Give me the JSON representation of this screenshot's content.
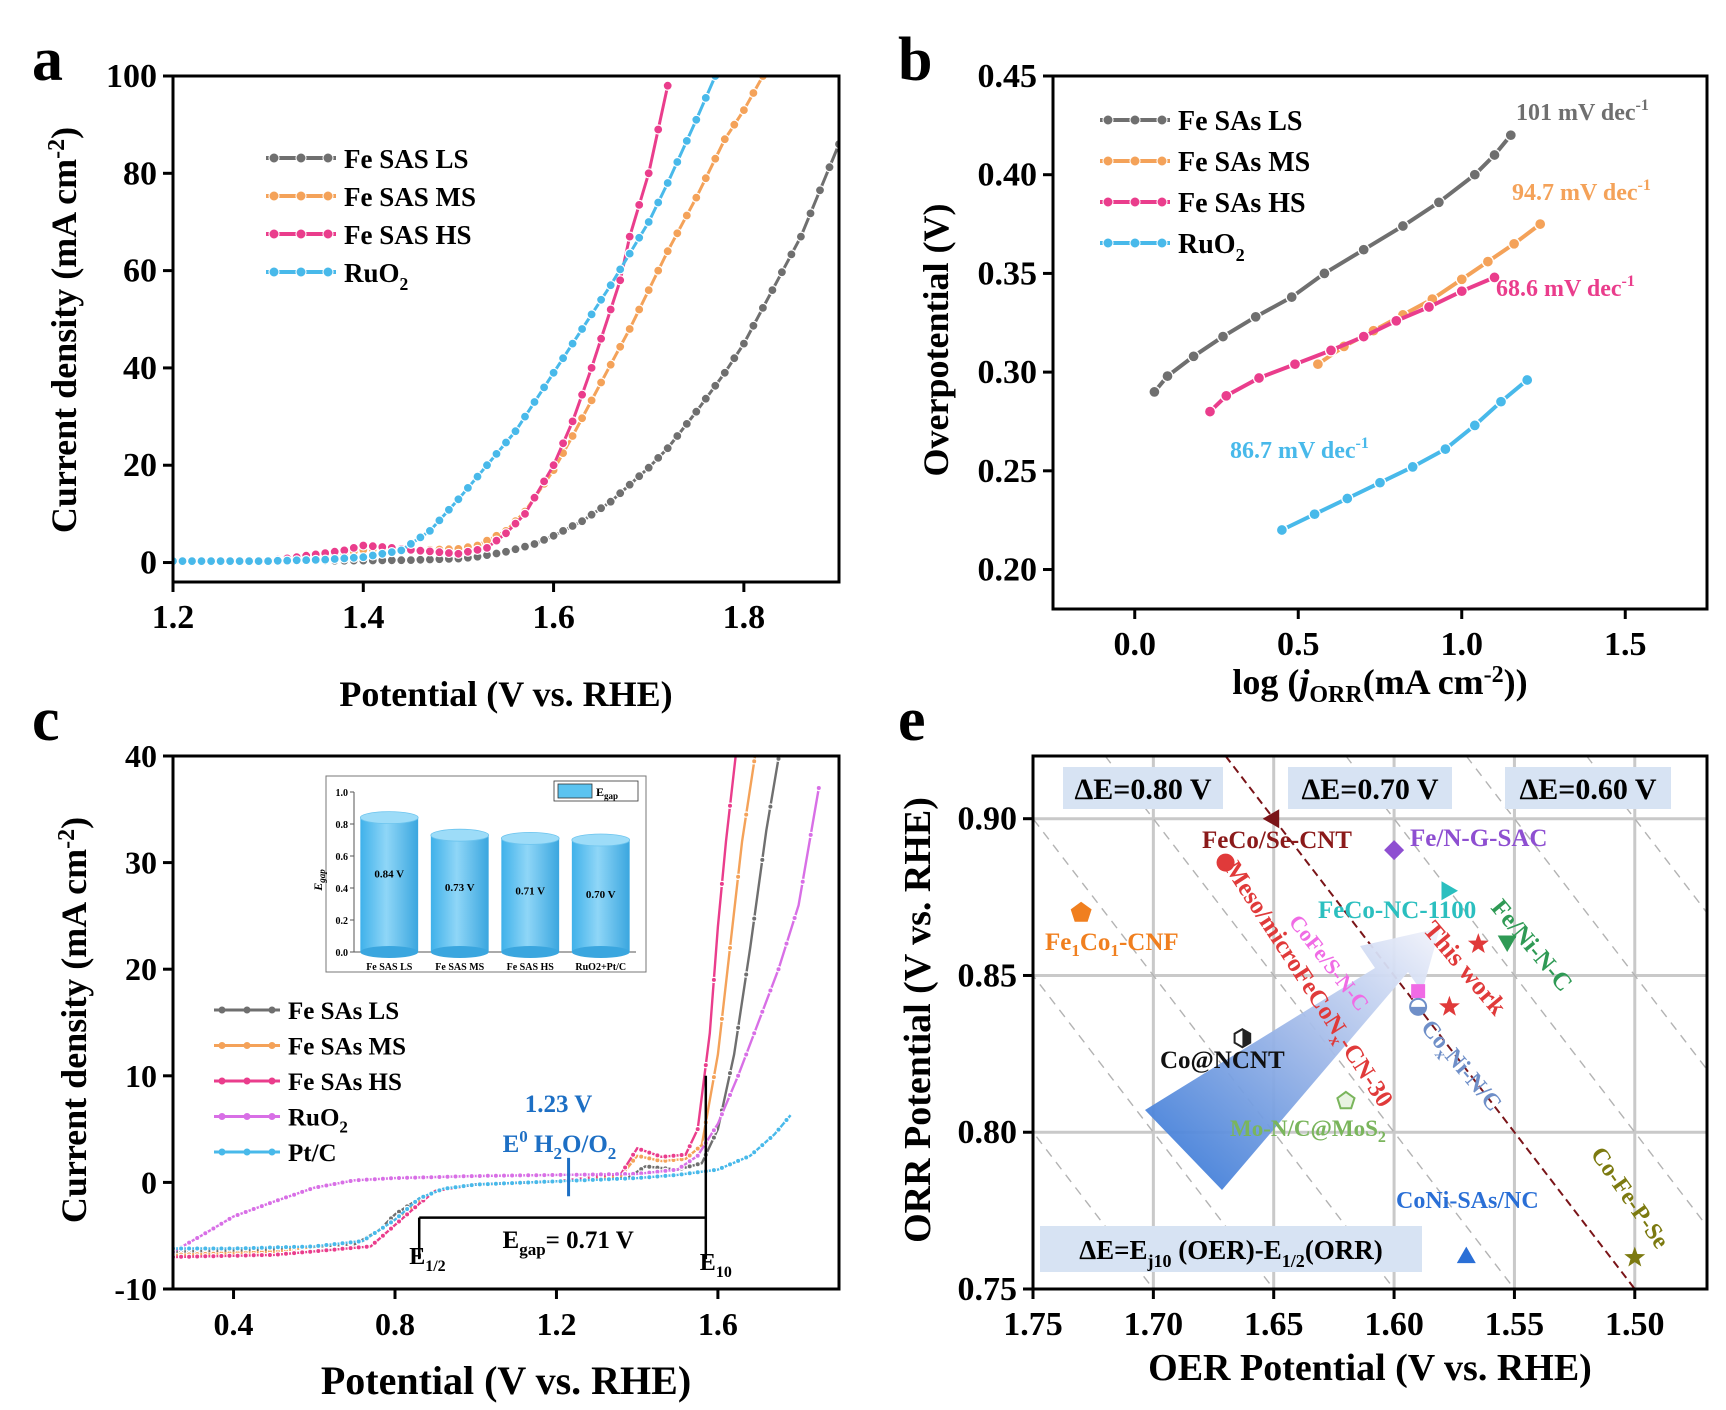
{
  "figure": {
    "panel_labels": {
      "a": "a",
      "b": "b",
      "c": "c",
      "e": "e"
    }
  },
  "chart_data": [
    {
      "id": "a",
      "type": "line",
      "xlabel": "Potential (V vs. RHE)",
      "ylabel_main": "Current density (mA cm",
      "ylabel_sup": "-2",
      "ylabel_end": ")",
      "xlim": [
        1.2,
        1.9
      ],
      "ylim": [
        -4,
        100
      ],
      "xticks": [
        1.2,
        1.4,
        1.6,
        1.8
      ],
      "xtick_labels": [
        "1.2",
        "1.4",
        "1.6",
        "1.8"
      ],
      "yticks": [
        0,
        20,
        40,
        60,
        80,
        100
      ],
      "ytick_labels": [
        "0",
        "20",
        "40",
        "60",
        "80",
        "100"
      ],
      "legend_position": "upper-left",
      "series": [
        {
          "legend": "Fe SAS LS",
          "color": "#6f6f6f",
          "x": [
            1.2,
            1.3,
            1.4,
            1.45,
            1.5,
            1.52,
            1.55,
            1.58,
            1.6,
            1.63,
            1.66,
            1.7,
            1.72,
            1.75,
            1.78,
            1.8,
            1.83,
            1.86,
            1.9
          ],
          "y": [
            0.3,
            0.3,
            0.4,
            0.5,
            0.8,
            1.2,
            2.2,
            3.8,
            5.5,
            8.5,
            12.5,
            19.5,
            23.5,
            31,
            39,
            45,
            56,
            67,
            86
          ]
        },
        {
          "legend": "Fe SAS MS",
          "color": "#f4a259",
          "x": [
            1.2,
            1.3,
            1.38,
            1.4,
            1.42,
            1.45,
            1.5,
            1.52,
            1.55,
            1.57,
            1.6,
            1.62,
            1.65,
            1.68,
            1.7,
            1.72,
            1.75,
            1.78,
            1.8,
            1.82
          ],
          "y": [
            0.3,
            0.3,
            1.8,
            2.6,
            2.8,
            2.5,
            2.8,
            3.5,
            6.5,
            10.5,
            19,
            26,
            37,
            48,
            56,
            64,
            75,
            87,
            93,
            100
          ]
        },
        {
          "legend": "Fe SAS HS",
          "color": "#ea3d8c",
          "x": [
            1.2,
            1.3,
            1.38,
            1.4,
            1.42,
            1.45,
            1.5,
            1.53,
            1.55,
            1.57,
            1.6,
            1.62,
            1.64,
            1.65,
            1.66,
            1.67,
            1.68,
            1.7,
            1.72
          ],
          "y": [
            0.3,
            0.3,
            2.5,
            3.5,
            3.2,
            2.6,
            1.8,
            3,
            6,
            10,
            20,
            29,
            40,
            46,
            52,
            58,
            67,
            80,
            98
          ]
        },
        {
          "legend": "RuO2",
          "color": "#48b9ea",
          "x": [
            1.2,
            1.3,
            1.36,
            1.4,
            1.44,
            1.47,
            1.5,
            1.53,
            1.56,
            1.6,
            1.63,
            1.66,
            1.7,
            1.72,
            1.75,
            1.77
          ],
          "y": [
            0.3,
            0.3,
            0.6,
            1.1,
            2.5,
            6.5,
            13,
            20,
            27,
            39,
            48,
            57,
            70,
            78,
            91,
            100
          ]
        }
      ]
    },
    {
      "id": "b",
      "type": "line",
      "xlabel_pre": "log (",
      "xlabel_j": "j",
      "xlabel_sub": "ORR",
      "xlabel_mid": "(mA cm",
      "xlabel_sup": "-2",
      "xlabel_end": "))",
      "ylabel": "Overpotential (V)",
      "xlim": [
        -0.25,
        1.75
      ],
      "ylim": [
        0.18,
        0.45
      ],
      "xticks": [
        0.0,
        0.5,
        1.0,
        1.5
      ],
      "xtick_labels": [
        "0.0",
        "0.5",
        "1.0",
        "1.5"
      ],
      "yticks": [
        0.2,
        0.25,
        0.3,
        0.35,
        0.4,
        0.45
      ],
      "ytick_labels": [
        "0.20",
        "0.25",
        "0.30",
        "0.35",
        "0.40",
        "0.45"
      ],
      "legend_position": "upper-left",
      "series": [
        {
          "legend": "Fe SAs LS",
          "color": "#6f6f6f",
          "annotation": "101 mV dec",
          "annotation_sup": "-1",
          "x": [
            0.06,
            0.1,
            0.18,
            0.27,
            0.37,
            0.48,
            0.58,
            0.7,
            0.82,
            0.93,
            1.04,
            1.1,
            1.15
          ],
          "y": [
            0.29,
            0.298,
            0.308,
            0.318,
            0.328,
            0.338,
            0.35,
            0.362,
            0.374,
            0.386,
            0.4,
            0.41,
            0.42
          ]
        },
        {
          "legend": "Fe SAs MS",
          "color": "#f4a259",
          "annotation": "94.7 mV dec",
          "annotation_sup": "-1",
          "x": [
            0.56,
            0.64,
            0.73,
            0.82,
            0.91,
            1.0,
            1.08,
            1.16,
            1.24
          ],
          "y": [
            0.304,
            0.313,
            0.321,
            0.329,
            0.337,
            0.347,
            0.356,
            0.365,
            0.375
          ]
        },
        {
          "legend": "Fe SAs HS",
          "color": "#ea3d8c",
          "annotation": "68.6 mV dec",
          "annotation_sup": "-1",
          "x": [
            0.23,
            0.28,
            0.38,
            0.49,
            0.6,
            0.7,
            0.8,
            0.9,
            1.0,
            1.1
          ],
          "y": [
            0.28,
            0.288,
            0.297,
            0.304,
            0.311,
            0.318,
            0.326,
            0.333,
            0.341,
            0.348
          ]
        },
        {
          "legend": "RuO2",
          "color": "#48b9ea",
          "annotation": "86.7 mV dec",
          "annotation_sup": "-1",
          "x": [
            0.45,
            0.55,
            0.65,
            0.75,
            0.85,
            0.95,
            1.04,
            1.12,
            1.2
          ],
          "y": [
            0.22,
            0.228,
            0.236,
            0.244,
            0.252,
            0.261,
            0.273,
            0.285,
            0.296
          ]
        }
      ]
    },
    {
      "id": "c",
      "type": "line",
      "xlabel": "Potential (V vs. RHE)",
      "ylabel_main": "Current density (mA cm",
      "ylabel_sup": "-2",
      "ylabel_end": ")",
      "xlim": [
        0.25,
        1.9
      ],
      "ylim": [
        -10,
        40
      ],
      "xticks": [
        0.4,
        0.8,
        1.2,
        1.6
      ],
      "xtick_labels": [
        "0.4",
        "0.8",
        "1.2",
        "1.6"
      ],
      "yticks": [
        -10,
        0,
        10,
        20,
        30,
        40
      ],
      "ytick_labels": [
        "-10",
        "0",
        "10",
        "20",
        "30",
        "40"
      ],
      "legend_position": "lower-left",
      "annotations": {
        "e0_value": "1.23 V",
        "e0_label_pre": "E",
        "e0_label_sup": "0",
        "e0_label_mid": " H",
        "e0_label_sub": "2",
        "e0_label_mid2": "O/O",
        "e0_label_sub2": "2",
        "egap_pre": "E",
        "egap_sub": "gap",
        "egap_post": "= 0.71 V",
        "e_half_pre": "E",
        "e_half_sub": "1/2",
        "e10_pre": "E",
        "e10_sub": "10",
        "e_half_x": 0.86,
        "e10_x": 1.57,
        "e0_x": 1.23
      },
      "series": [
        {
          "legend": "Fe SAs LS",
          "color": "#6f6f6f",
          "x": [
            0.25,
            0.5,
            0.7,
            0.76,
            0.8,
            0.86,
            0.92,
            1.0,
            1.2,
            1.38,
            1.42,
            1.5,
            1.56,
            1.6,
            1.64,
            1.68,
            1.72,
            1.76
          ],
          "y": [
            -6.5,
            -6.3,
            -5.8,
            -4.5,
            -3.0,
            -1.5,
            -0.6,
            -0.2,
            0.1,
            0.5,
            1.5,
            1.2,
            1.8,
            5,
            12,
            22,
            33,
            42
          ]
        },
        {
          "legend": "Fe SAs MS",
          "color": "#f4a259",
          "x": [
            0.25,
            0.5,
            0.72,
            0.8,
            0.86,
            0.9,
            1.0,
            1.2,
            1.36,
            1.4,
            1.46,
            1.52,
            1.56,
            1.6,
            1.63,
            1.66,
            1.7
          ],
          "y": [
            -6.8,
            -6.5,
            -5.5,
            -3.5,
            -1.8,
            -0.8,
            -0.2,
            0.1,
            0.6,
            2.5,
            2.0,
            2.2,
            3.5,
            12,
            22,
            32,
            42
          ]
        },
        {
          "legend": "Fe SAs HS",
          "color": "#ea3d8c",
          "x": [
            0.25,
            0.5,
            0.74,
            0.8,
            0.86,
            0.9,
            1.0,
            1.2,
            1.36,
            1.4,
            1.46,
            1.52,
            1.55,
            1.58,
            1.6,
            1.62,
            1.65
          ],
          "y": [
            -7,
            -6.8,
            -6.0,
            -4.0,
            -2.0,
            -0.8,
            -0.2,
            0.1,
            0.8,
            3.2,
            2.4,
            2.6,
            5,
            14,
            24,
            32,
            42
          ]
        },
        {
          "legend": "RuO2",
          "color": "#d86fe6",
          "x": [
            0.25,
            0.32,
            0.4,
            0.5,
            0.6,
            0.7,
            0.8,
            1.0,
            1.2,
            1.4,
            1.5,
            1.55,
            1.6,
            1.65,
            1.7,
            1.75,
            1.8,
            1.85
          ],
          "y": [
            -6.5,
            -5.0,
            -3.2,
            -1.8,
            -0.5,
            0.2,
            0.4,
            0.6,
            0.7,
            0.8,
            1.2,
            2.5,
            5.5,
            10,
            15,
            20,
            26,
            37
          ]
        },
        {
          "legend": "Pt/C",
          "color": "#48b9ea",
          "x": [
            0.25,
            0.4,
            0.6,
            0.72,
            0.8,
            0.86,
            0.92,
            1.0,
            1.2,
            1.4,
            1.5,
            1.6,
            1.68,
            1.74,
            1.78
          ],
          "y": [
            -6.2,
            -6.2,
            -6.0,
            -5.5,
            -3.5,
            -1.5,
            -0.6,
            -0.2,
            0.1,
            0.4,
            0.7,
            1.2,
            2.5,
            4.5,
            6.3
          ]
        }
      ],
      "inset": {
        "type": "bar",
        "legend": "E",
        "legend_sub": "gap",
        "ylabel": "E",
        "ylabel_sub": "gap",
        "ylim": [
          0,
          1.0
        ],
        "yticks": [
          0,
          0.2,
          0.4,
          0.6,
          0.8,
          1.0
        ],
        "ytick_labels": [
          "0.0",
          "0.2",
          "0.4",
          "0.6",
          "0.8",
          "1.0"
        ],
        "categories": [
          "Fe SAS LS",
          "Fe SAS MS",
          "Fe SAS HS",
          "RuO2+Pt/C"
        ],
        "values": [
          0.84,
          0.73,
          0.71,
          0.7
        ],
        "value_labels": [
          "0.84 V",
          "0.73 V",
          "0.71 V",
          "0.70 V"
        ],
        "color": "#5bc3f0"
      }
    },
    {
      "id": "e",
      "type": "scatter",
      "xlabel": "OER Potential (V vs. RHE)",
      "ylabel": "ORR Potential (V vs. RHE)",
      "xlim": [
        1.75,
        1.47
      ],
      "ylim": [
        0.75,
        0.92
      ],
      "x_reversed": true,
      "xticks": [
        1.75,
        1.7,
        1.65,
        1.6,
        1.55,
        1.5
      ],
      "xtick_labels": [
        "1.75",
        "1.70",
        "1.65",
        "1.60",
        "1.55",
        "1.50"
      ],
      "yticks": [
        0.75,
        0.8,
        0.85,
        0.9
      ],
      "ytick_labels": [
        "0.75",
        "0.80",
        "0.85",
        "0.90"
      ],
      "grid": true,
      "boxes": {
        "de080": "ΔE=0.80 V",
        "de070": "ΔE=0.70 V",
        "de060": "ΔE=0.60 V",
        "formula_pre": "ΔE=E",
        "formula_sub1": "j10",
        "formula_mid": " (OER)-E",
        "formula_sub2": "1/2",
        "formula_end": "(ORR)"
      },
      "points": [
        {
          "label": "FeCo/Se-CNT",
          "x": 1.65,
          "y": 0.9,
          "marker": "triangle-left",
          "color": "#7a1418"
        },
        {
          "label": "Fe/N-G-SAC",
          "x": 1.6,
          "y": 0.89,
          "marker": "diamond",
          "color": "#8e4fd1"
        },
        {
          "label": "Meso/microFeCoNx-CN-30",
          "x": 1.67,
          "y": 0.886,
          "marker": "circle",
          "color": "#e03a3a"
        },
        {
          "label": "FeCo-NC-1100",
          "x": 1.578,
          "y": 0.877,
          "marker": "triangle-right",
          "color": "#2bbfbf"
        },
        {
          "label": "Fe1Co1-CNF",
          "x": 1.73,
          "y": 0.87,
          "marker": "pentagon",
          "color": "#f07f1f"
        },
        {
          "label": "Fe/Ni-N-C",
          "x": 1.553,
          "y": 0.861,
          "marker": "triangle-down",
          "color": "#2f9a55"
        },
        {
          "label": "This work",
          "x": 1.565,
          "y": 0.86,
          "marker": "star",
          "color": "#e03a3a"
        },
        {
          "label": "This work",
          "x": 1.577,
          "y": 0.84,
          "marker": "star",
          "color": "#e03a3a"
        },
        {
          "label": "CoFe/S-N-C",
          "x": 1.59,
          "y": 0.845,
          "marker": "square",
          "color": "#f06be5"
        },
        {
          "label": "CoxNi-N/C",
          "x": 1.59,
          "y": 0.84,
          "marker": "half-circle",
          "color": "#6f8fc8"
        },
        {
          "label": "Co@NCNT",
          "x": 1.663,
          "y": 0.83,
          "marker": "hexagon",
          "color": "#222222"
        },
        {
          "label": "Mo-N/C@MoS2",
          "x": 1.62,
          "y": 0.81,
          "marker": "pentagon-open",
          "color": "#7ab55c"
        },
        {
          "label": "CoNi-SAs/NC",
          "x": 1.57,
          "y": 0.76,
          "marker": "triangle-up",
          "color": "#2a6fd6"
        },
        {
          "label": "Co-Fe-P-Se",
          "x": 1.5,
          "y": 0.76,
          "marker": "star-small",
          "color": "#7c7a10"
        }
      ],
      "labels": {
        "fecose": "FeCo/Se-CNT",
        "fengsac": "Fe/N-G-SAC",
        "meso_pre": "Meso/microFeCoN",
        "meso_sub": "x",
        "meso_post": "-CN-30",
        "fecnc": "FeCo-NC-1100",
        "feco_pre": "Fe",
        "feco_sub1": "1",
        "feco_mid": "Co",
        "feco_sub2": "1",
        "feco_post": "-CNF",
        "feninc": "Fe/Ni-N-C",
        "thiswork": "This work",
        "cofesnc": "CoFe/S-N-C",
        "coxni_pre": "Co",
        "coxni_sub": "x",
        "coxni_post": "Ni-N/C",
        "concnt": "Co@NCNT",
        "mon_pre": "Mo-N/C@MoS",
        "mon_sub": "2",
        "conisas": "CoNi-SAs/NC",
        "cofepse": "Co-Fe-P-Se"
      }
    }
  ]
}
